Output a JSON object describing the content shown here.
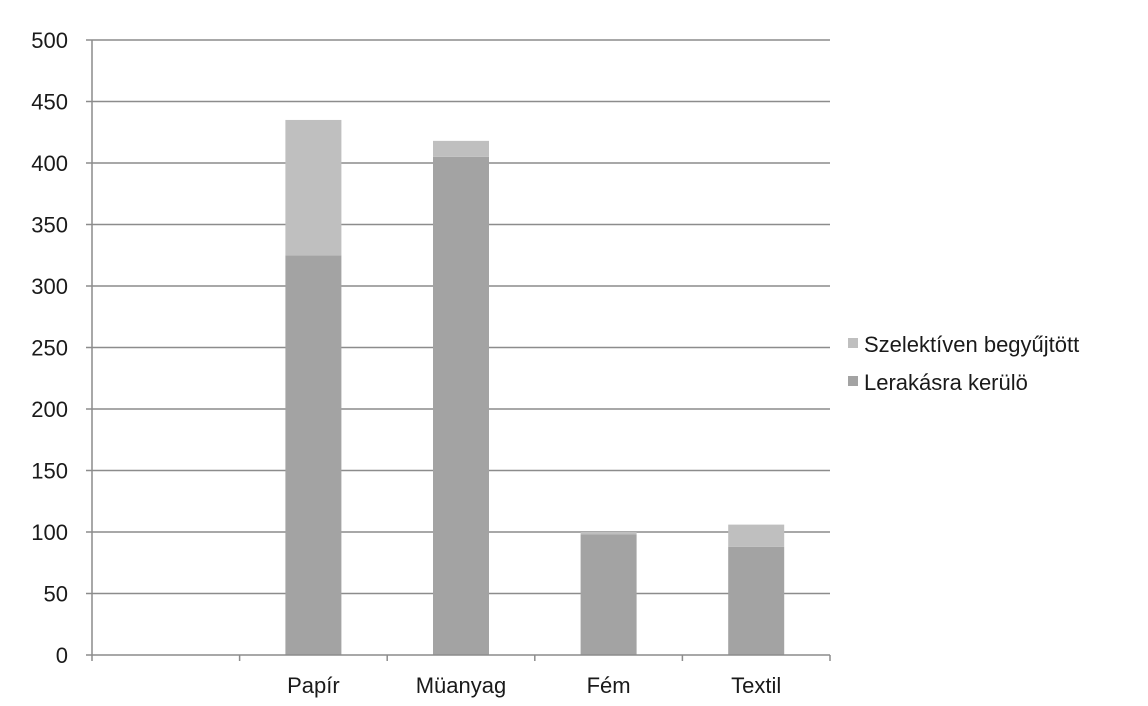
{
  "chart_data": {
    "type": "bar",
    "stacked": true,
    "title": "",
    "xlabel": "",
    "ylabel": "",
    "categories": [
      "",
      "Papír",
      "Müanyag",
      "Fém",
      "Textil"
    ],
    "ylim": [
      0,
      500
    ],
    "yticks": [
      0,
      50,
      100,
      150,
      200,
      250,
      300,
      350,
      400,
      450,
      500
    ],
    "grid": true,
    "legend_position": "right",
    "series": [
      {
        "name": "Lerakásra kerülö",
        "values": [
          0,
          325,
          405,
          98,
          88
        ],
        "color": "#a3a3a3"
      },
      {
        "name": "Szelektíven begyűjtött",
        "values": [
          0,
          110,
          13,
          2,
          18
        ],
        "color": "#bfbfbf"
      }
    ],
    "legend_order": [
      1,
      0
    ]
  }
}
